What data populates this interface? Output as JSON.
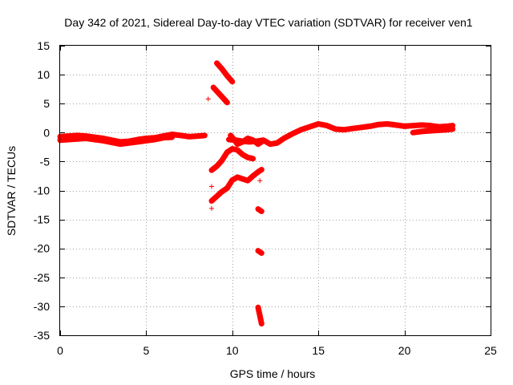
{
  "chart_data": {
    "type": "scatter",
    "title": "Day 342 of 2021, Sidereal Day-to-day VTEC variation (SDTVAR) for receiver ven1",
    "xlabel": "GPS time / hours",
    "ylabel": "SDTVAR / TECUs",
    "xlim": [
      0,
      25
    ],
    "ylim": [
      -35,
      15
    ],
    "xticks": [
      0,
      5,
      10,
      15,
      20,
      25
    ],
    "yticks": [
      15,
      10,
      5,
      0,
      -5,
      -10,
      -15,
      -20,
      -25,
      -30,
      -35
    ],
    "grid": true,
    "legend": "none",
    "color": "#ff0000",
    "marker": "+",
    "series": [
      {
        "name": "main-track-a",
        "x": [
          0,
          0.5,
          1.0,
          1.5,
          2.0,
          2.5,
          3.0,
          3.5,
          4.0,
          4.5,
          5.0,
          5.5,
          6.0,
          6.5,
          7.0,
          7.5,
          8.0,
          8.4
        ],
        "y": [
          -0.7,
          -0.6,
          -0.5,
          -0.6,
          -0.8,
          -1.0,
          -1.3,
          -1.6,
          -1.5,
          -1.2,
          -1.0,
          -0.9,
          -0.6,
          -0.3,
          -0.5,
          -0.7,
          -0.6,
          -0.5
        ]
      },
      {
        "name": "main-track-a-band",
        "x": [
          0,
          0.5,
          1.0,
          1.5,
          2.0,
          2.5,
          3.0,
          3.5,
          4.0,
          4.5,
          5.0,
          5.5,
          6.0,
          6.5
        ],
        "y": [
          -1.3,
          -1.2,
          -1.1,
          -1.0,
          -1.2,
          -1.4,
          -1.7,
          -2.0,
          -1.8,
          -1.6,
          -1.4,
          -1.2,
          -0.9,
          -0.8
        ]
      },
      {
        "name": "main-track-b",
        "x": [
          9.8,
          10.2,
          10.6,
          11.0,
          11.4,
          11.8,
          12.2,
          12.6,
          13.0,
          13.5,
          14.0,
          14.5,
          15.0,
          15.5,
          16.0,
          16.5,
          17.0,
          17.5,
          18.0,
          18.5,
          19.0,
          19.5,
          20.0,
          20.5,
          21.0,
          21.5,
          22.0,
          22.5,
          22.8
        ],
        "y": [
          -1.2,
          -1.3,
          -1.5,
          -1.6,
          -1.5,
          -1.3,
          -2.0,
          -1.8,
          -1.0,
          -0.2,
          0.5,
          1.0,
          1.5,
          1.2,
          0.6,
          0.5,
          0.7,
          0.9,
          1.1,
          1.4,
          1.5,
          1.3,
          1.1,
          1.2,
          1.3,
          1.2,
          1.0,
          1.1,
          1.2
        ]
      },
      {
        "name": "main-track-b-band",
        "x": [
          20.5,
          21.0,
          21.5,
          22.0,
          22.5,
          22.8
        ],
        "y": [
          0.0,
          0.2,
          0.3,
          0.4,
          0.5,
          0.6
        ]
      },
      {
        "name": "spike-up-1",
        "x": [
          9.1,
          9.4,
          9.7,
          10.0
        ],
        "y": [
          12.0,
          11.0,
          9.8,
          8.8
        ]
      },
      {
        "name": "spike-up-2",
        "x": [
          8.9,
          9.3,
          9.7
        ],
        "y": [
          7.8,
          6.5,
          5.2
        ]
      },
      {
        "name": "spike-mid-1",
        "x": [
          9.9,
          10.1,
          10.3,
          10.6,
          10.9,
          11.2,
          11.5,
          11.7
        ],
        "y": [
          -0.5,
          -1.2,
          -2.0,
          -1.6,
          -1.0,
          -1.3,
          -2.0,
          -1.6
        ]
      },
      {
        "name": "spike-mid-2",
        "x": [
          8.8,
          9.1,
          9.4,
          9.7,
          10.0,
          10.3,
          10.6,
          10.9,
          11.2
        ],
        "y": [
          -6.5,
          -5.8,
          -4.8,
          -3.4,
          -2.8,
          -3.0,
          -3.8,
          -4.3,
          -4.5
        ]
      },
      {
        "name": "spike-mid-3",
        "x": [
          8.8,
          9.1,
          9.4,
          9.7,
          10.0,
          10.3,
          10.6,
          10.9,
          11.2,
          11.5,
          11.7
        ],
        "y": [
          -11.8,
          -11.0,
          -10.2,
          -9.6,
          -8.2,
          -7.7,
          -8.0,
          -8.3,
          -7.5,
          -6.8,
          -6.4
        ]
      },
      {
        "name": "lower-drop-1",
        "x": [
          11.5,
          11.7
        ],
        "y": [
          -13.2,
          -13.6
        ]
      },
      {
        "name": "lower-drop-2",
        "x": [
          11.5,
          11.7
        ],
        "y": [
          -20.4,
          -20.8
        ]
      },
      {
        "name": "lower-drop-3",
        "x": [
          11.5,
          11.6,
          11.7
        ],
        "y": [
          -30.2,
          -31.6,
          -33.0
        ]
      },
      {
        "name": "stray-points",
        "x": [
          8.6,
          8.8,
          8.8,
          11.6
        ],
        "y": [
          5.8,
          -9.3,
          -13.1,
          -8.3
        ]
      }
    ]
  }
}
